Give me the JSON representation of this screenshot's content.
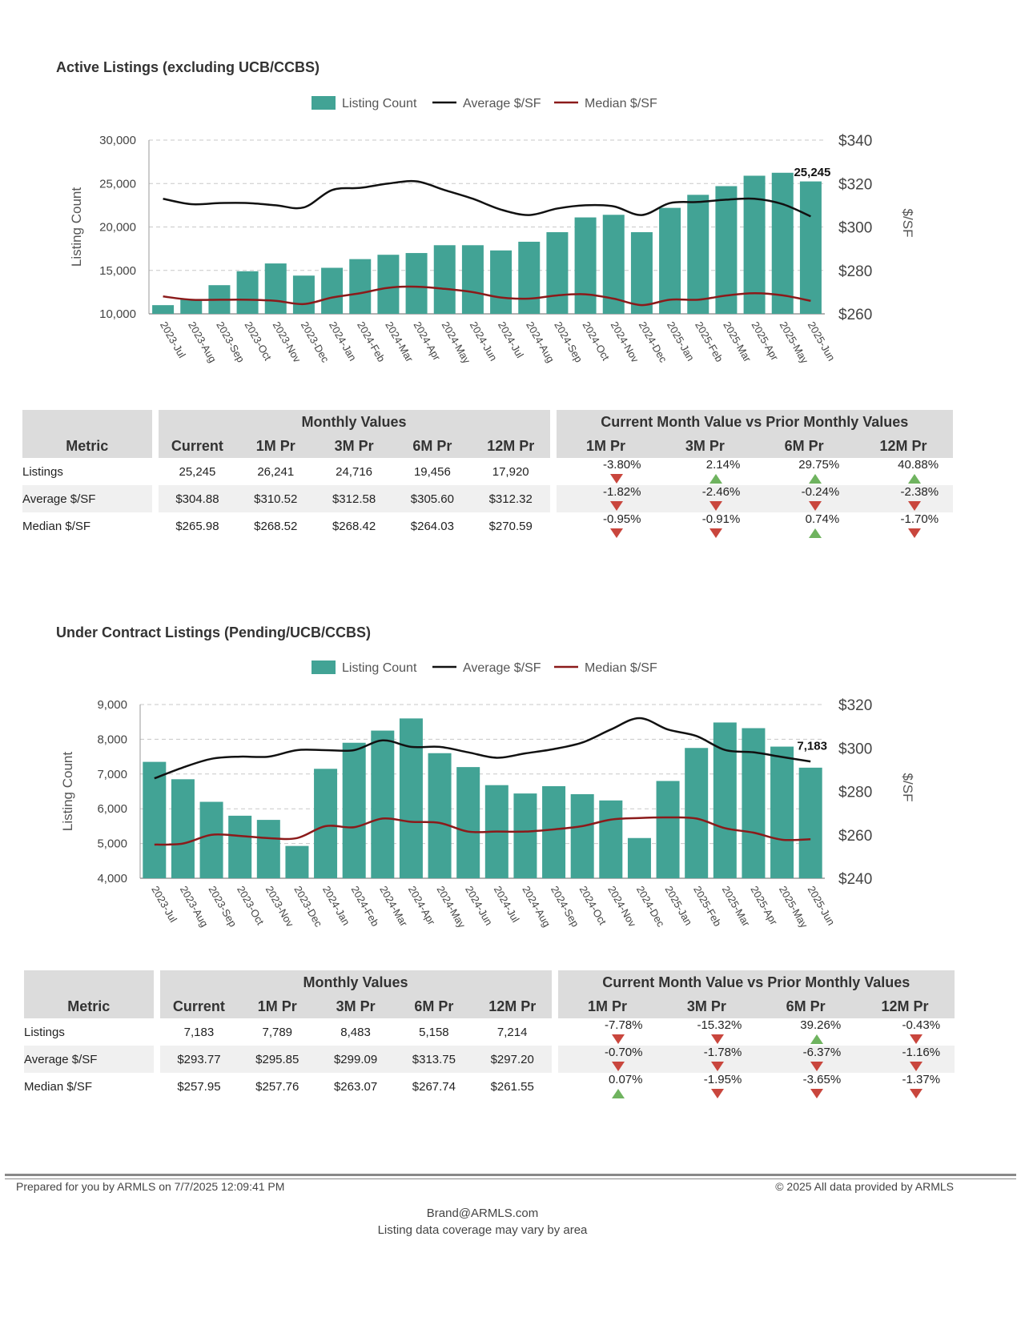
{
  "charts": [
    {
      "section_title": "Active Listings (excluding UCB/CCBS)",
      "legend": {
        "bars": "Listing Count",
        "avg": "Average $/SF",
        "median": "Median $/SF"
      },
      "ylabel_left": "Listing Count",
      "ylabel_right": "$/SF",
      "callout": "25,245",
      "left_ticks": [
        "10,000",
        "15,000",
        "20,000",
        "25,000",
        "30,000"
      ],
      "right_ticks": [
        "$260",
        "$280",
        "$300",
        "$320",
        "$340"
      ],
      "table": {
        "group1": "Monthly Values",
        "group2": "Current Month Value vs Prior Monthly Values",
        "metric_header": "Metric",
        "cols1": [
          "Current",
          "1M Pr",
          "3M Pr",
          "6M Pr",
          "12M Pr"
        ],
        "cols2": [
          "1M Pr",
          "3M Pr",
          "6M Pr",
          "12M Pr"
        ],
        "rows": [
          {
            "name": "Listings",
            "values": [
              "25,245",
              "26,241",
              "24,716",
              "19,456",
              "17,920"
            ],
            "changes": [
              {
                "v": "-3.80%",
                "d": "down"
              },
              {
                "v": "2.14%",
                "d": "up"
              },
              {
                "v": "29.75%",
                "d": "up"
              },
              {
                "v": "40.88%",
                "d": "up"
              }
            ]
          },
          {
            "name": "Average $/SF",
            "values": [
              "$304.88",
              "$310.52",
              "$312.58",
              "$305.60",
              "$312.32"
            ],
            "changes": [
              {
                "v": "-1.82%",
                "d": "down"
              },
              {
                "v": "-2.46%",
                "d": "down"
              },
              {
                "v": "-0.24%",
                "d": "down"
              },
              {
                "v": "-2.38%",
                "d": "down"
              }
            ]
          },
          {
            "name": "Median $/SF",
            "values": [
              "$265.98",
              "$268.52",
              "$268.42",
              "$264.03",
              "$270.59"
            ],
            "changes": [
              {
                "v": "-0.95%",
                "d": "down"
              },
              {
                "v": "-0.91%",
                "d": "down"
              },
              {
                "v": "0.74%",
                "d": "up"
              },
              {
                "v": "-1.70%",
                "d": "down"
              }
            ]
          }
        ]
      }
    },
    {
      "section_title": "Under Contract Listings (Pending/UCB/CCBS)",
      "legend": {
        "bars": "Listing Count",
        "avg": "Average $/SF",
        "median": "Median $/SF"
      },
      "ylabel_left": "Listing Count",
      "ylabel_right": "$/SF",
      "callout": "7,183",
      "left_ticks": [
        "4,000",
        "5,000",
        "6,000",
        "7,000",
        "8,000",
        "9,000"
      ],
      "right_ticks": [
        "$240",
        "$260",
        "$280",
        "$300",
        "$320"
      ],
      "table": {
        "group1": "Monthly Values",
        "group2": "Current Month Value vs Prior Monthly Values",
        "metric_header": "Metric",
        "cols1": [
          "Current",
          "1M Pr",
          "3M Pr",
          "6M Pr",
          "12M Pr"
        ],
        "cols2": [
          "1M Pr",
          "3M Pr",
          "6M Pr",
          "12M Pr"
        ],
        "rows": [
          {
            "name": "Listings",
            "values": [
              "7,183",
              "7,789",
              "8,483",
              "5,158",
              "7,214"
            ],
            "changes": [
              {
                "v": "-7.78%",
                "d": "down"
              },
              {
                "v": "-15.32%",
                "d": "down"
              },
              {
                "v": "39.26%",
                "d": "up"
              },
              {
                "v": "-0.43%",
                "d": "down"
              }
            ]
          },
          {
            "name": "Average $/SF",
            "values": [
              "$293.77",
              "$295.85",
              "$299.09",
              "$313.75",
              "$297.20"
            ],
            "changes": [
              {
                "v": "-0.70%",
                "d": "down"
              },
              {
                "v": "-1.78%",
                "d": "down"
              },
              {
                "v": "-6.37%",
                "d": "down"
              },
              {
                "v": "-1.16%",
                "d": "down"
              }
            ]
          },
          {
            "name": "Median $/SF",
            "values": [
              "$257.95",
              "$257.76",
              "$263.07",
              "$267.74",
              "$261.55"
            ],
            "changes": [
              {
                "v": "0.07%",
                "d": "up"
              },
              {
                "v": "-1.95%",
                "d": "down"
              },
              {
                "v": "-3.65%",
                "d": "down"
              },
              {
                "v": "-1.37%",
                "d": "down"
              }
            ]
          }
        ]
      }
    }
  ],
  "chart_data": [
    {
      "type": "bar",
      "title": "Active Listings (excluding UCB/CCBS)",
      "categories": [
        "2023-Jul",
        "2023-Aug",
        "2023-Sep",
        "2023-Oct",
        "2023-Nov",
        "2023-Dec",
        "2024-Jan",
        "2024-Feb",
        "2024-Mar",
        "2024-Apr",
        "2024-May",
        "2024-Jun",
        "2024-Jul",
        "2024-Aug",
        "2024-Sep",
        "2024-Oct",
        "2024-Nov",
        "2024-Dec",
        "2025-Jan",
        "2025-Feb",
        "2025-Mar",
        "2025-Apr",
        "2025-May",
        "2025-Jun"
      ],
      "series": [
        {
          "name": "Listing Count",
          "axis": "left",
          "kind": "bar",
          "values": [
            11000,
            11700,
            13300,
            14900,
            15800,
            14400,
            15300,
            16300,
            16800,
            17000,
            17900,
            17900,
            17300,
            18300,
            19400,
            21100,
            21400,
            19400,
            22200,
            23700,
            24700,
            25900,
            26241,
            25245
          ]
        },
        {
          "name": "Average $/SF",
          "axis": "right",
          "kind": "line",
          "values": [
            313,
            310.5,
            311,
            311,
            310,
            309,
            317,
            318,
            320,
            321,
            317,
            313,
            308,
            305.5,
            308.5,
            310,
            309.5,
            305.5,
            311,
            311.5,
            312.58,
            313,
            310.52,
            304.88
          ]
        },
        {
          "name": "Median $/SF",
          "axis": "right",
          "kind": "line",
          "values": [
            268,
            266.5,
            266.5,
            266.5,
            266,
            264.5,
            267.5,
            269.5,
            272,
            272.5,
            271.5,
            270,
            267.5,
            267,
            268.5,
            269,
            267,
            264.03,
            266.5,
            266.5,
            268.42,
            269.5,
            268.52,
            265.98
          ]
        }
      ],
      "ylabel": "Listing Count",
      "y2label": "$/SF",
      "ylim": [
        10000,
        30000
      ],
      "y2lim": [
        260,
        340
      ],
      "grid": true,
      "legend": "top"
    },
    {
      "type": "bar",
      "title": "Under Contract Listings (Pending/UCB/CCBS)",
      "categories": [
        "2023-Jul",
        "2023-Aug",
        "2023-Sep",
        "2023-Oct",
        "2023-Nov",
        "2023-Dec",
        "2024-Jan",
        "2024-Feb",
        "2024-Mar",
        "2024-Apr",
        "2024-May",
        "2024-Jun",
        "2024-Jul",
        "2024-Aug",
        "2024-Sep",
        "2024-Oct",
        "2024-Nov",
        "2024-Dec",
        "2025-Jan",
        "2025-Feb",
        "2025-Mar",
        "2025-Apr",
        "2025-May",
        "2025-Jun"
      ],
      "series": [
        {
          "name": "Listing Count",
          "axis": "left",
          "kind": "bar",
          "values": [
            7350,
            6850,
            6200,
            5800,
            5680,
            4930,
            7150,
            7900,
            8250,
            8600,
            7600,
            7200,
            6680,
            6440,
            6650,
            6420,
            6240,
            5158,
            6800,
            7750,
            8483,
            8320,
            7789,
            7183
          ]
        },
        {
          "name": "Average $/SF",
          "axis": "right",
          "kind": "line",
          "values": [
            286,
            291,
            295,
            296,
            296,
            299,
            299,
            299,
            303.5,
            300.5,
            300.5,
            298,
            295.5,
            297.5,
            299.5,
            302.5,
            308.5,
            313.75,
            308.5,
            305.5,
            299.09,
            298,
            295.85,
            293.77
          ]
        },
        {
          "name": "Median $/SF",
          "axis": "right",
          "kind": "line",
          "values": [
            255.5,
            256,
            260,
            259.5,
            258.5,
            258.5,
            264,
            263.5,
            267.5,
            266,
            265.5,
            261.5,
            261.5,
            261.5,
            262.5,
            264,
            267,
            267.74,
            268,
            267.5,
            263.07,
            261,
            257.76,
            257.95
          ]
        }
      ],
      "ylabel": "Listing Count",
      "y2label": "$/SF",
      "ylim": [
        4000,
        9000
      ],
      "y2lim": [
        240,
        320
      ],
      "grid": true,
      "legend": "top"
    }
  ],
  "footer": {
    "left": "Prepared for you by ARMLS on 7/7/2025 12:09:41 PM",
    "right": "© 2025 All data provided by ARMLS",
    "email": "Brand@ARMLS.com",
    "note": "Listing data coverage may vary by area"
  },
  "colors": {
    "bar": "#42a395",
    "avg": "#111111",
    "median": "#8b1a1a",
    "grid": "#c8c8c8",
    "down": "#c9463d",
    "up": "#6fb35f"
  }
}
